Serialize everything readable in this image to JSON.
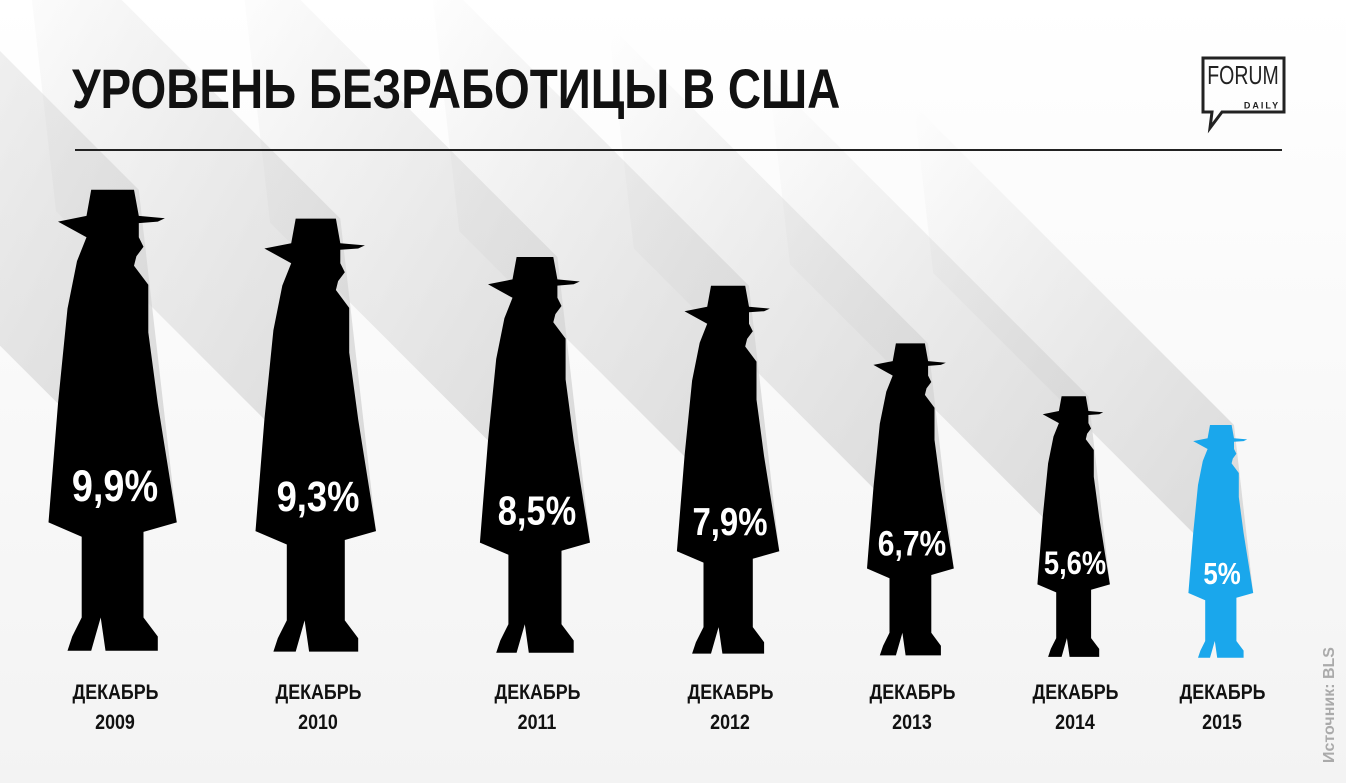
{
  "chart_data": {
    "type": "pictograph",
    "title": "УРОВЕНЬ БЕЗРАБОТИЦЫ В США",
    "categories": [
      "ДЕКАБРЬ 2009",
      "ДЕКАБРЬ 2010",
      "ДЕКАБРЬ 2011",
      "ДЕКАБРЬ 2012",
      "ДЕКАБРЬ 2013",
      "ДЕКАБРЬ 2014",
      "ДЕКАБРЬ 2015"
    ],
    "values": [
      9.9,
      9.3,
      8.5,
      7.9,
      6.7,
      5.6,
      5
    ],
    "value_labels": [
      "9,9%",
      "9,3%",
      "8,5%",
      "7,9%",
      "6,7%",
      "5,6%",
      "5%"
    ],
    "colors": [
      "#000000",
      "#000000",
      "#000000",
      "#000000",
      "#000000",
      "#000000",
      "#1aa7ec"
    ],
    "source": "Источник: BLS",
    "logo": {
      "name": "FORUM",
      "sub": "DAILY"
    }
  }
}
